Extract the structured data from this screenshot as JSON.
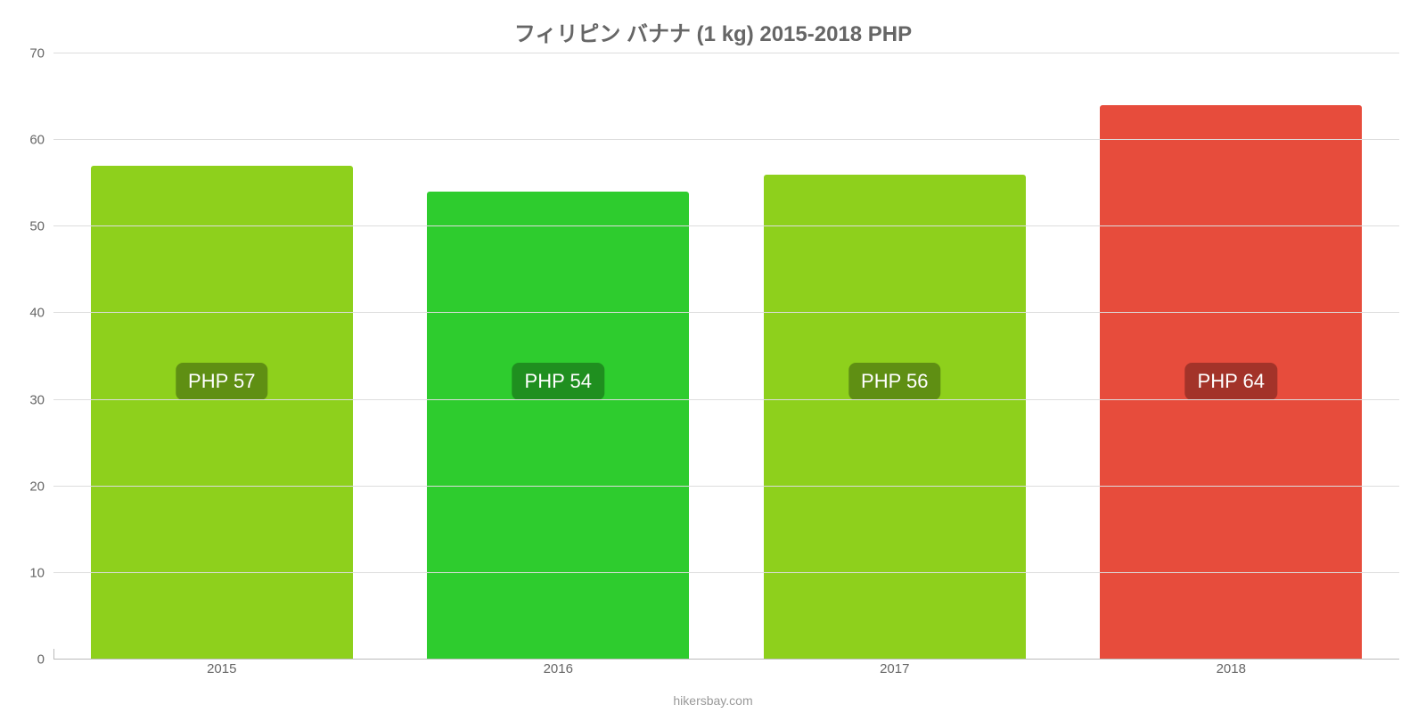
{
  "chart": {
    "type": "bar",
    "title": "フィリピン バナナ (1 kg) 2015-2018 PHP",
    "title_fontsize": 24,
    "title_color": "#666666",
    "categories": [
      "2015",
      "2016",
      "2017",
      "2018"
    ],
    "values": [
      57,
      54,
      56,
      64
    ],
    "value_labels": [
      "PHP 57",
      "PHP 54",
      "PHP 56",
      "PHP 64"
    ],
    "bar_colors": [
      "#8ed01c",
      "#2ecc2e",
      "#8ed01c",
      "#e74c3c"
    ],
    "label_bg_colors": [
      "#5f8f13",
      "#1f8f1f",
      "#5f8f13",
      "#a33329"
    ],
    "label_text_color": "#ffffff",
    "label_fontsize": 22,
    "ylim": [
      0,
      70
    ],
    "ytick_step": 10,
    "yticks": [
      0,
      10,
      20,
      30,
      40,
      50,
      60,
      70
    ],
    "grid_color": "#dddddd",
    "axis_color": "#bbbbbb",
    "tick_fontsize": 15,
    "tick_color": "#666666",
    "background_color": "#ffffff",
    "bar_width_pct": 78,
    "label_center_value": 32,
    "attribution": "hikersbay.com",
    "attribution_color": "#999999",
    "attribution_fontsize": 14
  }
}
